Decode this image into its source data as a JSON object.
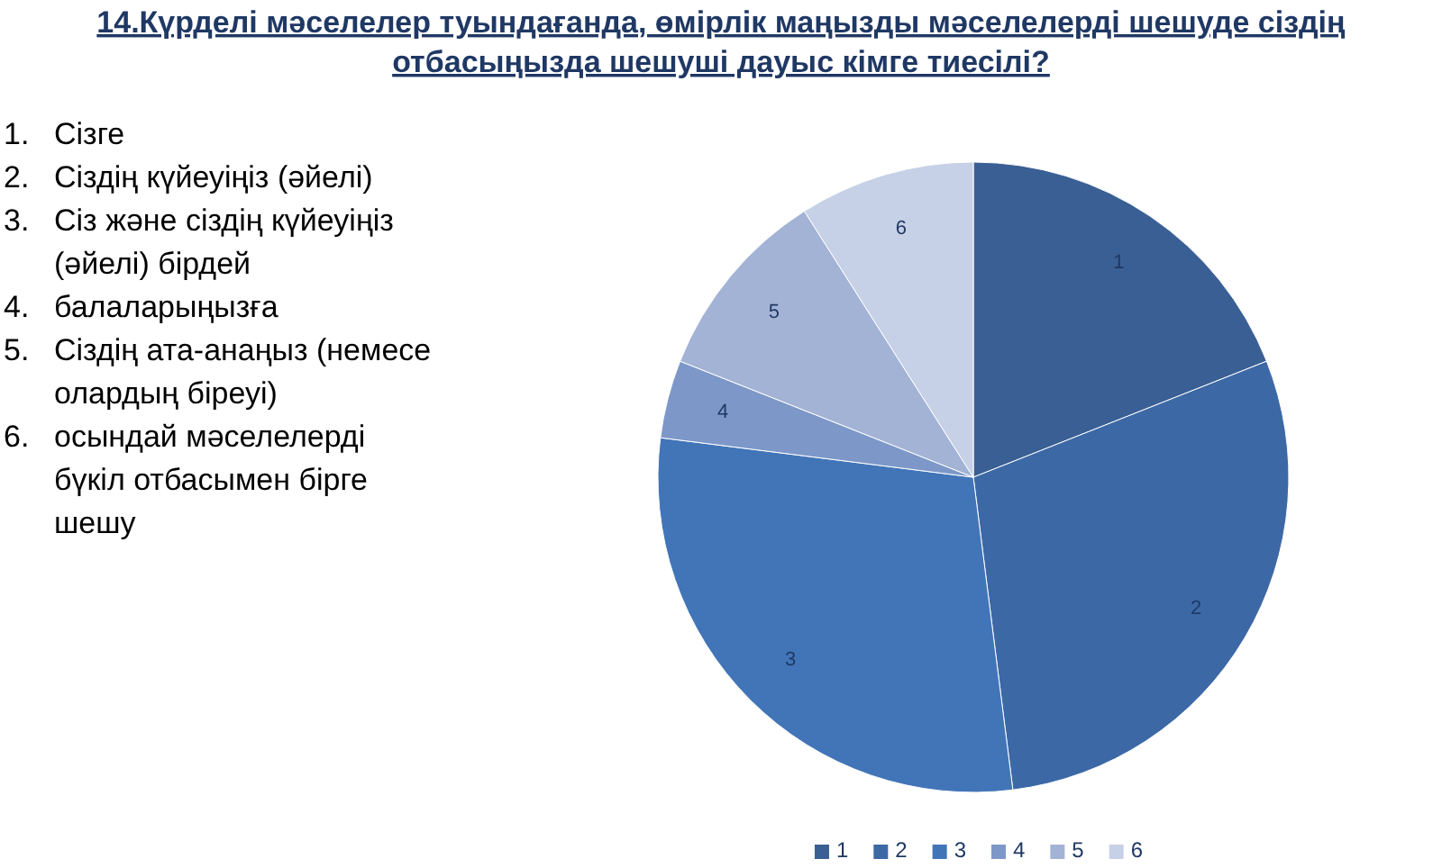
{
  "chart_data": {
    "type": "pie",
    "title": "14.Күрделі мәселелер туындағанда, өмірлік маңызды мәселелерді шешуде сіздің отбасыңызда шешуші дауыс кімге тиесілі?",
    "categories": [
      "1",
      "2",
      "3",
      "4",
      "5",
      "6"
    ],
    "values": [
      19,
      29,
      29,
      4,
      10,
      9
    ],
    "colors": [
      "#3a5f94",
      "#3c69a6",
      "#4275b8",
      "#7d98c8",
      "#a3b3d6",
      "#c6d0e6"
    ],
    "legend": "bottom",
    "annotations": [
      "1. Сізге",
      "2. Сіздің күйеуіңіз (әйелі)",
      "3. Сіз және сіздің күйеуіңіз (әйелі) бірдей",
      "4. балаларыңызға",
      "5. Сіздің ата-анаңыз (немесе олардың біреуі)",
      "6. осындай мәселелерді бүкіл отбасымен бірге шешу"
    ]
  }
}
